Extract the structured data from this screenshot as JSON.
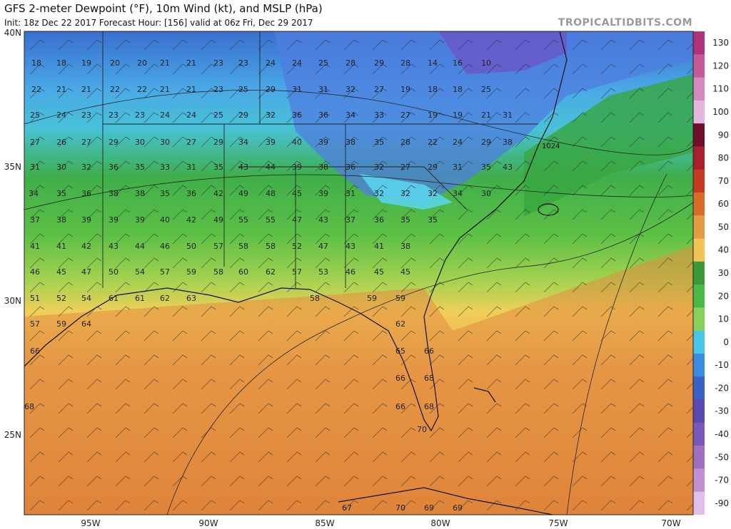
{
  "header": {
    "title": "GFS 2-meter Dewpoint (°F), 10m Wind (kt), and MSLP (hPa)",
    "subtitle": "Init: 18z Dec 22 2017   Forecast Hour: [156]   valid at 06z Fri, Dec 29 2017",
    "brand": "TROPICALTIDBITS.COM"
  },
  "map_axes": {
    "lon_labels": [
      "95W",
      "90W",
      "85W",
      "80W",
      "75W",
      "70W"
    ],
    "lat_labels": [
      "40N",
      "35N",
      "30N",
      "25N"
    ]
  },
  "colorbar": {
    "ticks": [
      "130",
      "120",
      "110",
      "100",
      "90",
      "80",
      "70",
      "60",
      "50",
      "40",
      "30",
      "20",
      "10",
      "0",
      "-10",
      "-20",
      "-30",
      "-40",
      "-50",
      "-70",
      "-90"
    ],
    "colors": [
      "#b0327a",
      "#c45a9a",
      "#d48ac0",
      "#e4b8dc",
      "#6e0f2c",
      "#a81f2e",
      "#c63a22",
      "#d96d28",
      "#e59b45",
      "#f2c455",
      "#3a9a3a",
      "#4cb848",
      "#8bd05a",
      "#48c8e8",
      "#3a8ce0",
      "#3a62c6",
      "#5a4ab0",
      "#7a58b8",
      "#a070c0",
      "#c090d0",
      "#e0c0e8"
    ]
  },
  "annotations": {
    "high_pressure": "1024"
  },
  "station_values": [
    {
      "t": "18",
      "c": "#222"
    },
    {
      "t": "18",
      "c": "#222"
    },
    {
      "t": "19",
      "c": "#222"
    },
    {
      "t": "20",
      "c": "#222"
    },
    {
      "t": "20",
      "c": "#222"
    },
    {
      "t": "21",
      "c": "#222"
    },
    {
      "t": "21",
      "c": "#222"
    },
    {
      "t": "23",
      "c": "#222"
    },
    {
      "t": "23",
      "c": "#222"
    },
    {
      "t": "24",
      "c": "#222"
    },
    {
      "t": "24",
      "c": "#222"
    },
    {
      "t": "25",
      "c": "#222"
    },
    {
      "t": "28",
      "c": "#222"
    },
    {
      "t": "29",
      "c": "#222"
    },
    {
      "t": "28",
      "c": "#222"
    },
    {
      "t": "14",
      "c": "#222"
    },
    {
      "t": "16",
      "c": "#222"
    },
    {
      "t": "10",
      "c": "#222"
    },
    {
      "t": "22",
      "c": "#222"
    },
    {
      "t": "21",
      "c": "#222"
    },
    {
      "t": "21",
      "c": "#222"
    },
    {
      "t": "22",
      "c": "#222"
    },
    {
      "t": "22",
      "c": "#222"
    },
    {
      "t": "21",
      "c": "#222"
    },
    {
      "t": "21",
      "c": "#222"
    },
    {
      "t": "23",
      "c": "#222"
    },
    {
      "t": "25",
      "c": "#222"
    },
    {
      "t": "29",
      "c": "#222"
    },
    {
      "t": "31",
      "c": "#222"
    },
    {
      "t": "31",
      "c": "#222"
    },
    {
      "t": "32",
      "c": "#222"
    },
    {
      "t": "27",
      "c": "#222"
    },
    {
      "t": "19",
      "c": "#222"
    },
    {
      "t": "18",
      "c": "#222"
    },
    {
      "t": "18",
      "c": "#222"
    },
    {
      "t": "25",
      "c": "#222"
    },
    {
      "t": "25",
      "c": "#222"
    },
    {
      "t": "24",
      "c": "#222"
    },
    {
      "t": "23",
      "c": "#222"
    },
    {
      "t": "23",
      "c": "#222"
    },
    {
      "t": "23",
      "c": "#222"
    },
    {
      "t": "24",
      "c": "#222"
    },
    {
      "t": "24",
      "c": "#222"
    },
    {
      "t": "25",
      "c": "#222"
    },
    {
      "t": "29",
      "c": "#222"
    },
    {
      "t": "32",
      "c": "#222"
    },
    {
      "t": "36",
      "c": "#222"
    },
    {
      "t": "36",
      "c": "#222"
    },
    {
      "t": "34",
      "c": "#222"
    },
    {
      "t": "33",
      "c": "#222"
    },
    {
      "t": "27",
      "c": "#222"
    },
    {
      "t": "19",
      "c": "#222"
    },
    {
      "t": "19",
      "c": "#222"
    },
    {
      "t": "21",
      "c": "#222"
    },
    {
      "t": "31",
      "c": "#222"
    },
    {
      "t": "27",
      "c": "#222"
    },
    {
      "t": "26",
      "c": "#222"
    },
    {
      "t": "27",
      "c": "#222"
    },
    {
      "t": "29",
      "c": "#222"
    },
    {
      "t": "30",
      "c": "#222"
    },
    {
      "t": "30",
      "c": "#222"
    },
    {
      "t": "27",
      "c": "#222"
    },
    {
      "t": "29",
      "c": "#222"
    },
    {
      "t": "34",
      "c": "#222"
    },
    {
      "t": "39",
      "c": "#222"
    },
    {
      "t": "40",
      "c": "#222"
    },
    {
      "t": "39",
      "c": "#222"
    },
    {
      "t": "38",
      "c": "#222"
    },
    {
      "t": "35",
      "c": "#222"
    },
    {
      "t": "28",
      "c": "#222"
    },
    {
      "t": "22",
      "c": "#222"
    },
    {
      "t": "24",
      "c": "#222"
    },
    {
      "t": "29",
      "c": "#222"
    },
    {
      "t": "38",
      "c": "#222"
    },
    {
      "t": "31",
      "c": "#222"
    },
    {
      "t": "30",
      "c": "#222"
    },
    {
      "t": "32",
      "c": "#222"
    },
    {
      "t": "36",
      "c": "#222"
    },
    {
      "t": "35",
      "c": "#222"
    },
    {
      "t": "33",
      "c": "#222"
    },
    {
      "t": "31",
      "c": "#222"
    },
    {
      "t": "35",
      "c": "#222"
    },
    {
      "t": "43",
      "c": "#222"
    },
    {
      "t": "44",
      "c": "#222"
    },
    {
      "t": "39",
      "c": "#222"
    },
    {
      "t": "38",
      "c": "#222"
    },
    {
      "t": "36",
      "c": "#222"
    },
    {
      "t": "32",
      "c": "#222"
    },
    {
      "t": "27",
      "c": "#222"
    },
    {
      "t": "29",
      "c": "#222"
    },
    {
      "t": "31",
      "c": "#222"
    },
    {
      "t": "35",
      "c": "#222"
    },
    {
      "t": "43",
      "c": "#222"
    },
    {
      "t": "34",
      "c": "#222"
    },
    {
      "t": "35",
      "c": "#222"
    },
    {
      "t": "36",
      "c": "#222"
    },
    {
      "t": "38",
      "c": "#222"
    },
    {
      "t": "38",
      "c": "#222"
    },
    {
      "t": "35",
      "c": "#222"
    },
    {
      "t": "36",
      "c": "#222"
    },
    {
      "t": "42",
      "c": "#222"
    },
    {
      "t": "49",
      "c": "#222"
    },
    {
      "t": "48",
      "c": "#222"
    },
    {
      "t": "45",
      "c": "#222"
    },
    {
      "t": "39",
      "c": "#222"
    },
    {
      "t": "31",
      "c": "#222"
    },
    {
      "t": "32",
      "c": "#222"
    },
    {
      "t": "32",
      "c": "#222"
    },
    {
      "t": "32",
      "c": "#222"
    },
    {
      "t": "34",
      "c": "#222"
    },
    {
      "t": "30",
      "c": "#222"
    },
    {
      "t": "37",
      "c": "#222"
    },
    {
      "t": "38",
      "c": "#222"
    },
    {
      "t": "39",
      "c": "#222"
    },
    {
      "t": "39",
      "c": "#222"
    },
    {
      "t": "39",
      "c": "#222"
    },
    {
      "t": "40",
      "c": "#222"
    },
    {
      "t": "42",
      "c": "#222"
    },
    {
      "t": "49",
      "c": "#222"
    },
    {
      "t": "55",
      "c": "#222"
    },
    {
      "t": "55",
      "c": "#222"
    },
    {
      "t": "47",
      "c": "#222"
    },
    {
      "t": "43",
      "c": "#222"
    },
    {
      "t": "37",
      "c": "#222"
    },
    {
      "t": "36",
      "c": "#222"
    },
    {
      "t": "35",
      "c": "#222"
    },
    {
      "t": "35",
      "c": "#222"
    },
    {
      "t": "41",
      "c": "#222"
    },
    {
      "t": "41",
      "c": "#222"
    },
    {
      "t": "42",
      "c": "#222"
    },
    {
      "t": "43",
      "c": "#222"
    },
    {
      "t": "44",
      "c": "#222"
    },
    {
      "t": "46",
      "c": "#222"
    },
    {
      "t": "50",
      "c": "#222"
    },
    {
      "t": "57",
      "c": "#222"
    },
    {
      "t": "58",
      "c": "#222"
    },
    {
      "t": "58",
      "c": "#222"
    },
    {
      "t": "52",
      "c": "#222"
    },
    {
      "t": "47",
      "c": "#222"
    },
    {
      "t": "43",
      "c": "#222"
    },
    {
      "t": "41",
      "c": "#222"
    },
    {
      "t": "38",
      "c": "#222"
    },
    {
      "t": "46",
      "c": "#222"
    },
    {
      "t": "45",
      "c": "#222"
    },
    {
      "t": "47",
      "c": "#222"
    },
    {
      "t": "50",
      "c": "#222"
    },
    {
      "t": "54",
      "c": "#222"
    },
    {
      "t": "57",
      "c": "#222"
    },
    {
      "t": "59",
      "c": "#222"
    },
    {
      "t": "58",
      "c": "#222"
    },
    {
      "t": "60",
      "c": "#222"
    },
    {
      "t": "62",
      "c": "#222"
    },
    {
      "t": "57",
      "c": "#222"
    },
    {
      "t": "53",
      "c": "#222"
    },
    {
      "t": "46",
      "c": "#222"
    },
    {
      "t": "45",
      "c": "#222"
    },
    {
      "t": "45",
      "c": "#222"
    },
    {
      "t": "51",
      "c": "#222"
    },
    {
      "t": "52",
      "c": "#222"
    },
    {
      "t": "54",
      "c": "#222"
    },
    {
      "t": "61",
      "c": "#222"
    },
    {
      "t": "61",
      "c": "#222"
    },
    {
      "t": "62",
      "c": "#222"
    },
    {
      "t": "63",
      "c": "#222"
    },
    {
      "t": "58",
      "c": "#222"
    },
    {
      "t": "59",
      "c": "#222"
    },
    {
      "t": "59",
      "c": "#222"
    },
    {
      "t": "57",
      "c": "#222"
    },
    {
      "t": "59",
      "c": "#222"
    },
    {
      "t": "64",
      "c": "#222"
    },
    {
      "t": "62",
      "c": "#222"
    },
    {
      "t": "66",
      "c": "#222"
    },
    {
      "t": "65",
      "c": "#222"
    },
    {
      "t": "66",
      "c": "#222"
    },
    {
      "t": "66",
      "c": "#222"
    },
    {
      "t": "68",
      "c": "#222"
    },
    {
      "t": "68",
      "c": "#222"
    },
    {
      "t": "66",
      "c": "#222"
    },
    {
      "t": "68",
      "c": "#222"
    },
    {
      "t": "70",
      "c": "#222"
    },
    {
      "t": "67",
      "c": "#222"
    },
    {
      "t": "70",
      "c": "#222"
    },
    {
      "t": "69",
      "c": "#222"
    },
    {
      "t": "69",
      "c": "#222"
    }
  ]
}
